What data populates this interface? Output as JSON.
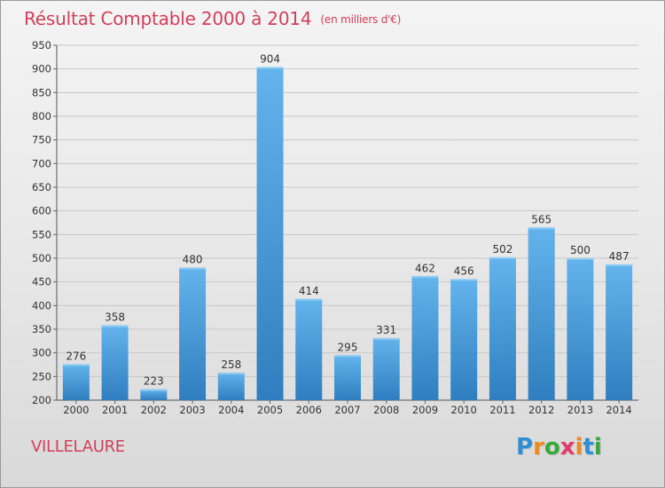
{
  "header": {
    "title": "Résultat Comptable 2000 à 2014",
    "subtitle": "(en milliers d'€)"
  },
  "footer": {
    "commune": "VILLELAURE",
    "logo_letters": [
      "P",
      "r",
      "o",
      "x",
      "i",
      "t",
      "i"
    ],
    "logo_colors": [
      "#2e8fd6",
      "#f08a1c",
      "#39a83c",
      "#e23c6a",
      "#f08a1c",
      "#2e8fd6",
      "#39a83c"
    ]
  },
  "colors": {
    "title": "#d0405a",
    "bar_light": "#63b3ec",
    "bar_dark": "#2f7fc0",
    "grid": "#c8c8c8"
  },
  "chart_data": {
    "type": "bar",
    "title": "Résultat Comptable 2000 à 2014",
    "xlabel": "",
    "ylabel": "",
    "categories": [
      "2000",
      "2001",
      "2002",
      "2003",
      "2004",
      "2005",
      "2006",
      "2007",
      "2008",
      "2009",
      "2010",
      "2011",
      "2012",
      "2013",
      "2014"
    ],
    "values": [
      276,
      358,
      223,
      480,
      258,
      904,
      414,
      295,
      331,
      462,
      456,
      502,
      565,
      500,
      487
    ],
    "ylim": [
      200,
      950
    ],
    "yticks": [
      200,
      250,
      300,
      350,
      400,
      450,
      500,
      550,
      600,
      650,
      700,
      750,
      800,
      850,
      900,
      950
    ],
    "grid": true
  }
}
